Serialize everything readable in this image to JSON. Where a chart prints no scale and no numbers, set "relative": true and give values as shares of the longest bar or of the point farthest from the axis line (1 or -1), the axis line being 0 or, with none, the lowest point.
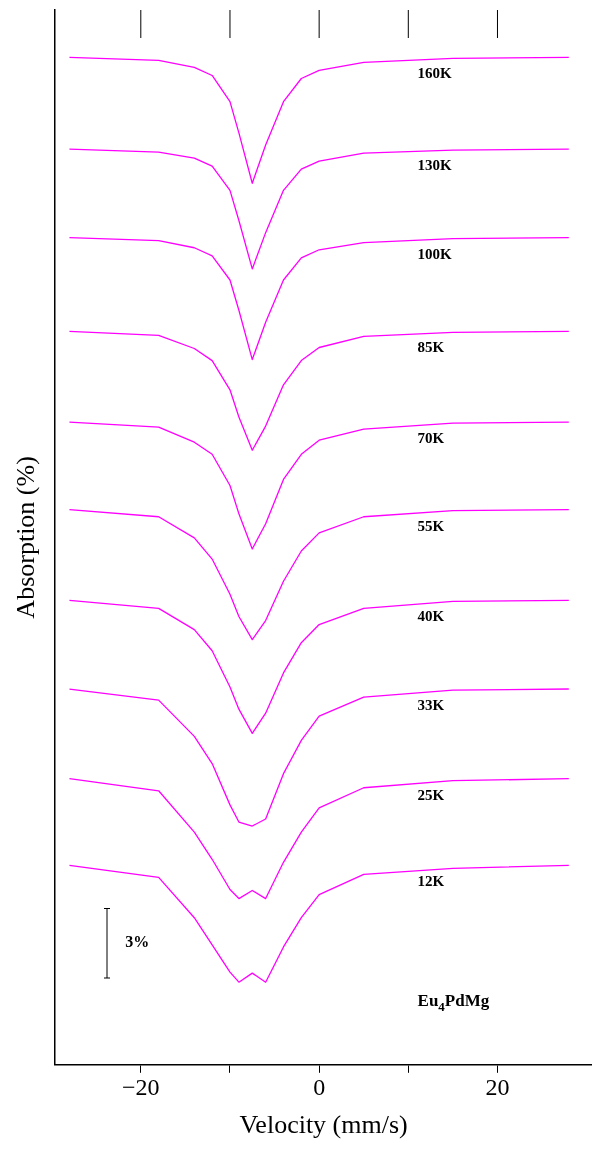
{
  "chart_data": {
    "type": "line",
    "xlabel": "Velocity (mm/s)",
    "ylabel": "Absorption (%)",
    "relative": true,
    "xlim": [
      -29.6,
      30.6
    ],
    "xticks": [
      -20,
      {
        "value": -10,
        "label": null
      },
      0,
      {
        "value": 10,
        "label": null
      },
      20
    ],
    "grid": false,
    "legend": false,
    "marker": "none",
    "line_style": "solid",
    "x": [
      -28,
      -18,
      -14,
      -12,
      -10,
      -9,
      -7.5,
      -6,
      -4,
      -2,
      0,
      5,
      15,
      28
    ],
    "series": [
      {
        "name": "160K",
        "color": "#ff00ff",
        "values": [
          1,
          0.997,
          0.99,
          0.982,
          0.956,
          0.925,
          0.875,
          0.913,
          0.956,
          0.979,
          0.987,
          0.995,
          0.999,
          1
        ]
      },
      {
        "name": "130K",
        "color": "#ff00ff",
        "values": [
          0.909,
          0.906,
          0.9,
          0.892,
          0.868,
          0.838,
          0.79,
          0.826,
          0.868,
          0.889,
          0.897,
          0.905,
          0.908,
          0.909
        ]
      },
      {
        "name": "100K",
        "color": "#ff00ff",
        "values": [
          0.821,
          0.818,
          0.811,
          0.803,
          0.779,
          0.749,
          0.7,
          0.737,
          0.779,
          0.801,
          0.809,
          0.816,
          0.82,
          0.821
        ]
      },
      {
        "name": "85K",
        "color": "#ff00ff",
        "values": [
          0.728,
          0.724,
          0.711,
          0.699,
          0.67,
          0.643,
          0.61,
          0.634,
          0.675,
          0.699,
          0.712,
          0.723,
          0.727,
          0.728
        ]
      },
      {
        "name": "70K",
        "color": "#ff00ff",
        "values": [
          0.638,
          0.633,
          0.618,
          0.606,
          0.575,
          0.547,
          0.512,
          0.537,
          0.581,
          0.606,
          0.62,
          0.631,
          0.637,
          0.638
        ]
      },
      {
        "name": "55K",
        "color": "#ff00ff",
        "values": [
          0.551,
          0.544,
          0.523,
          0.502,
          0.467,
          0.445,
          0.422,
          0.441,
          0.48,
          0.51,
          0.528,
          0.544,
          0.55,
          0.551
        ]
      },
      {
        "name": "40K",
        "color": "#ff00ff",
        "values": [
          0.461,
          0.453,
          0.432,
          0.411,
          0.375,
          0.353,
          0.329,
          0.349,
          0.389,
          0.419,
          0.437,
          0.453,
          0.46,
          0.461
        ]
      },
      {
        "name": "33K",
        "color": "#ff00ff",
        "values": [
          0.373,
          0.362,
          0.326,
          0.299,
          0.258,
          0.241,
          0.237,
          0.244,
          0.289,
          0.322,
          0.346,
          0.365,
          0.372,
          0.373
        ]
      },
      {
        "name": "25K",
        "color": "#ff00ff",
        "values": [
          0.284,
          0.272,
          0.231,
          0.204,
          0.174,
          0.165,
          0.173,
          0.165,
          0.201,
          0.231,
          0.255,
          0.275,
          0.282,
          0.284
        ]
      },
      {
        "name": "12K",
        "color": "#ff00ff",
        "values": [
          0.198,
          0.186,
          0.146,
          0.119,
          0.092,
          0.082,
          0.091,
          0.082,
          0.117,
          0.146,
          0.169,
          0.189,
          0.195,
          0.198
        ]
      }
    ],
    "annotations": [
      "3%",
      "Eu$_{4}$PdMg"
    ]
  }
}
